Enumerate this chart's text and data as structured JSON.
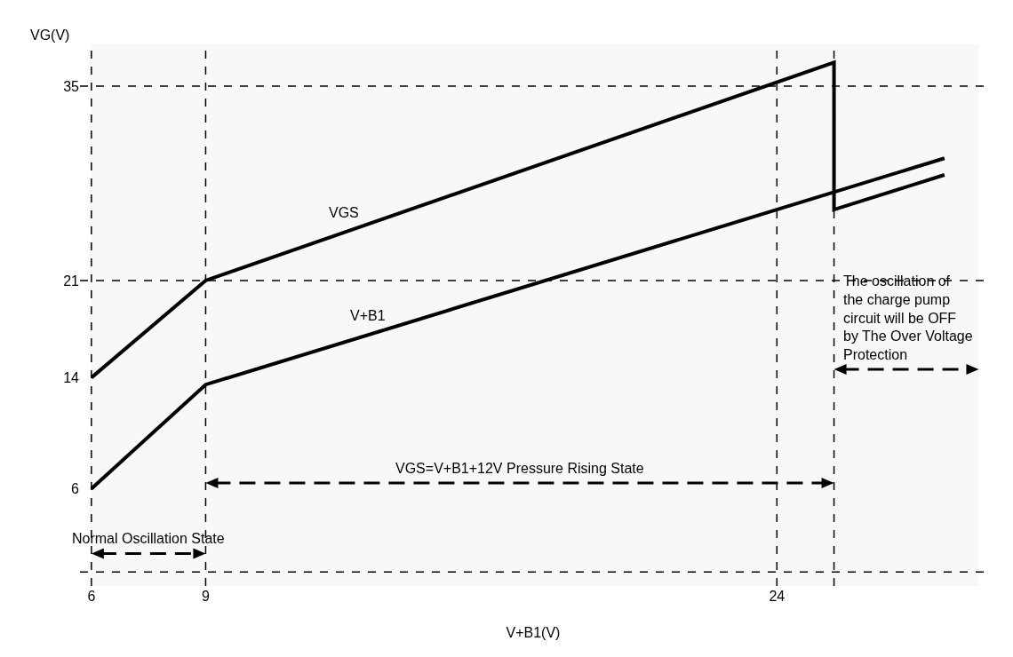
{
  "chart_data": {
    "type": "line",
    "xlabel": "V+B1(V)",
    "ylabel": "VG(V)",
    "xlim": [
      5.7,
      29.5
    ],
    "ylim": [
      -1,
      38
    ],
    "xticks": [
      6,
      9,
      24
    ],
    "yticks": [
      6,
      14,
      21,
      35
    ],
    "series": [
      {
        "color": "#000000",
        "x": [
          6,
          9,
          25.5,
          25.5,
          28.4
        ],
        "values": [
          14,
          21,
          36.7,
          26.1,
          28.6
        ]
      },
      {
        "color": "#000000",
        "x": [
          6,
          9,
          28.4
        ],
        "values": [
          6,
          13.5,
          29.8
        ]
      }
    ],
    "annotations": [
      "VGS",
      "V+B1"
    ],
    "ref_lines": [
      {
        "axis": "x",
        "value": 6,
        "line_style": "dashed"
      },
      {
        "axis": "x",
        "value": 9,
        "line_style": "dashed"
      },
      {
        "axis": "x",
        "value": 24,
        "line_style": "dashed"
      },
      {
        "axis": "x",
        "value": 25.5,
        "line_style": "dashed"
      },
      {
        "axis": "y",
        "value": 35,
        "line_style": "dashed"
      },
      {
        "axis": "y",
        "value": 21,
        "line_style": "dashed"
      },
      {
        "axis": "y",
        "value": 0,
        "line_style": "dashed"
      }
    ],
    "bands": [
      {
        "axis": "x",
        "from": 6,
        "to": 9,
        "label": "Normal Oscillation State"
      },
      {
        "axis": "x",
        "from": 9,
        "to": 25.5,
        "label": "VGS=V+B1+12V Pressure Rising State"
      },
      {
        "axis": "x",
        "from": 25.5,
        "to": 29.3,
        "label": "The oscillation of the charge pump circuit will be OFF by The Over Voltage Protection"
      }
    ],
    "grid": false,
    "marker": "none",
    "line_style": "solid"
  }
}
